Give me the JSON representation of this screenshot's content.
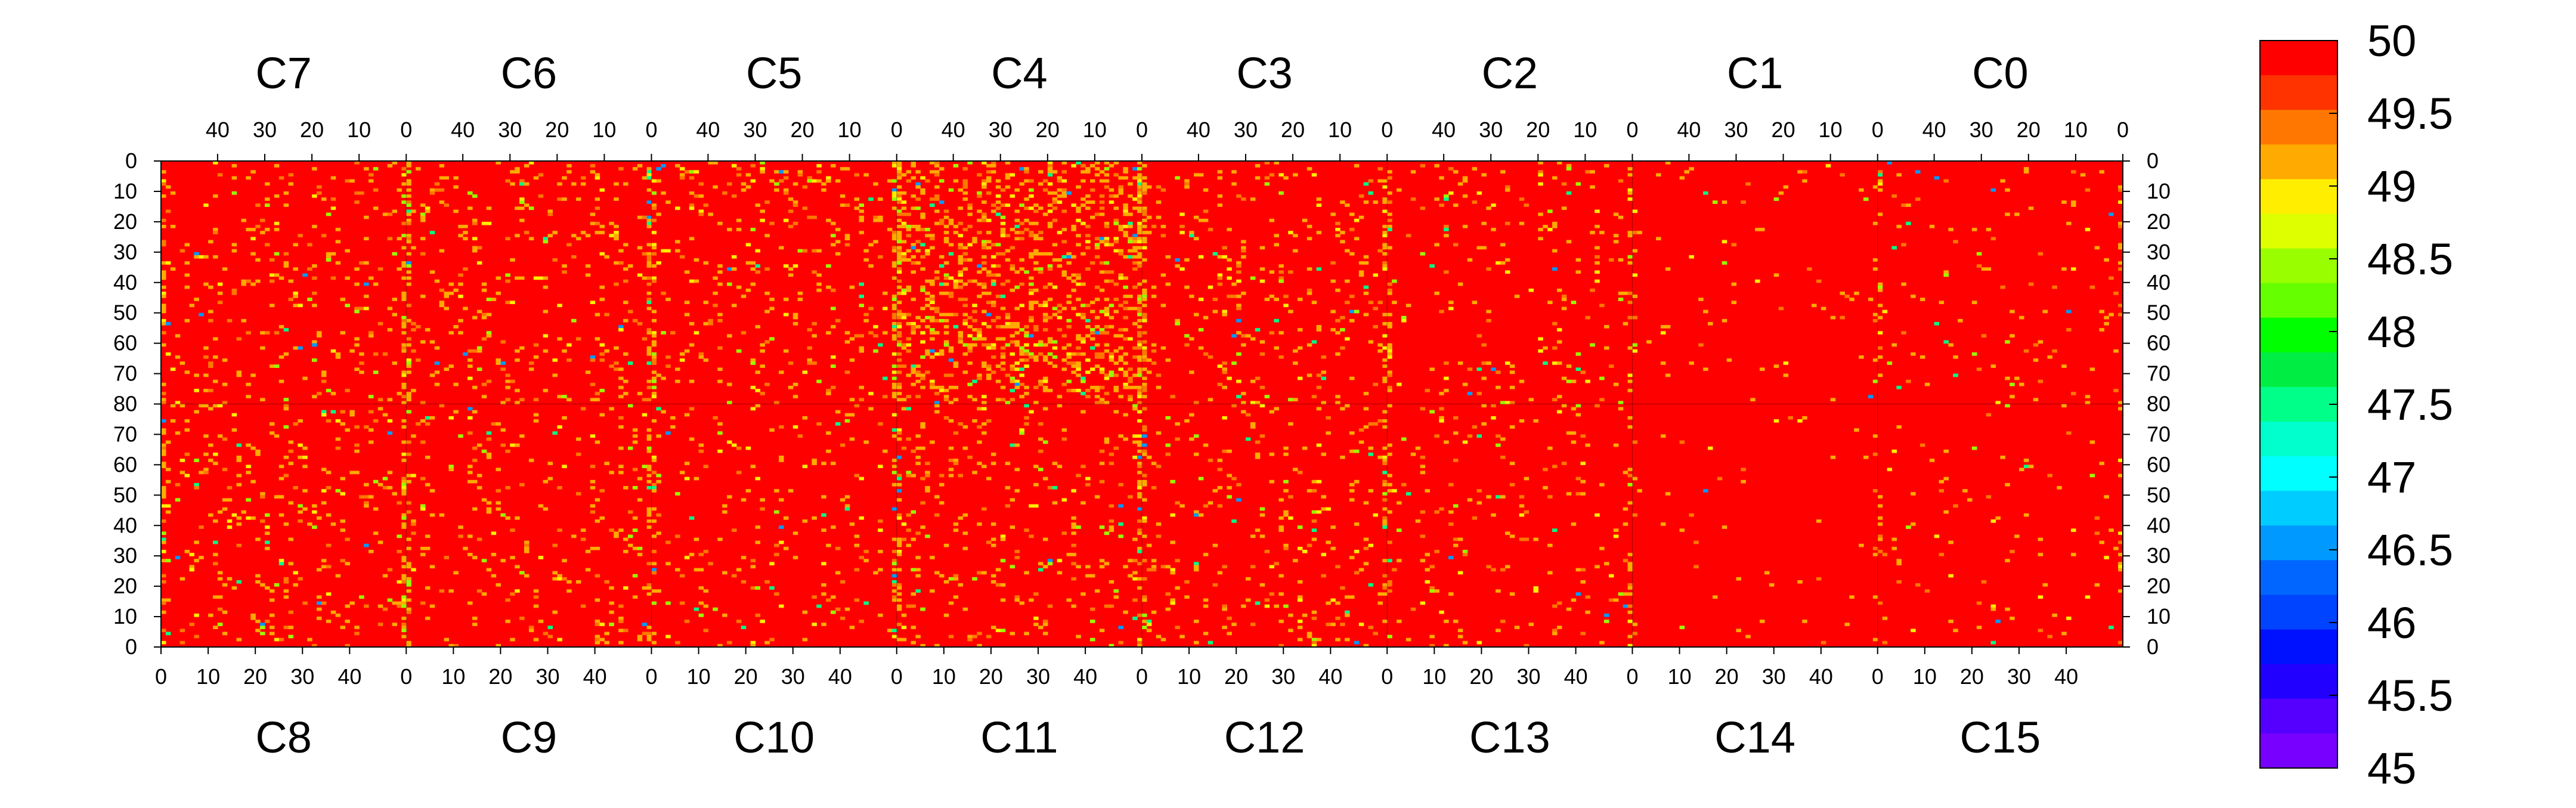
{
  "chart_data": {
    "type": "heatmap",
    "title": "",
    "value_range": [
      45,
      50
    ],
    "top_row": {
      "chips": [
        "C7",
        "C6",
        "C5",
        "C4",
        "C3",
        "C2",
        "C1",
        "C0"
      ],
      "column_axis_ticks": [
        "40",
        "30",
        "20",
        "10",
        "0"
      ],
      "row_range": [
        0,
        80
      ],
      "row_direction": "top-to-bottom",
      "column_direction": "right-to-left"
    },
    "bottom_row": {
      "chips": [
        "C8",
        "C9",
        "C10",
        "C11",
        "C12",
        "C13",
        "C14",
        "C15"
      ],
      "column_axis_ticks": [
        "0",
        "10",
        "20",
        "30",
        "40"
      ],
      "row_range": [
        0,
        80
      ],
      "row_direction": "bottom-to-top",
      "column_direction": "left-to-right"
    },
    "columns_per_chip": 52,
    "rows_per_half": 80,
    "left_axis_ticks": [
      "0",
      "10",
      "20",
      "30",
      "40",
      "50",
      "60",
      "70",
      "80",
      "70",
      "60",
      "50",
      "40",
      "30",
      "20",
      "10",
      "0"
    ],
    "right_axis_ticks": [
      "0",
      "10",
      "20",
      "30",
      "40",
      "50",
      "60",
      "70",
      "80",
      "70",
      "60",
      "50",
      "40",
      "30",
      "20",
      "10",
      "0"
    ],
    "chip_summary": [
      {
        "chip": "C7",
        "fraction_below_50": 0.06
      },
      {
        "chip": "C6",
        "fraction_below_50": 0.08
      },
      {
        "chip": "C5",
        "fraction_below_50": 0.07
      },
      {
        "chip": "C4",
        "fraction_below_50": 0.22
      },
      {
        "chip": "C3",
        "fraction_below_50": 0.07
      },
      {
        "chip": "C2",
        "fraction_below_50": 0.05
      },
      {
        "chip": "C1",
        "fraction_below_50": 0.02
      },
      {
        "chip": "C0",
        "fraction_below_50": 0.03
      },
      {
        "chip": "C8",
        "fraction_below_50": 0.07
      },
      {
        "chip": "C9",
        "fraction_below_50": 0.06
      },
      {
        "chip": "C10",
        "fraction_below_50": 0.05
      },
      {
        "chip": "C11",
        "fraction_below_50": 0.07
      },
      {
        "chip": "C12",
        "fraction_below_50": 0.06
      },
      {
        "chip": "C13",
        "fraction_below_50": 0.04
      },
      {
        "chip": "C14",
        "fraction_below_50": 0.01
      },
      {
        "chip": "C15",
        "fraction_below_50": 0.02
      }
    ],
    "colorbar": {
      "labels": [
        "50",
        "49.5",
        "49",
        "48.5",
        "48",
        "47.5",
        "47",
        "46.5",
        "46",
        "45.5",
        "45"
      ],
      "colors": [
        "#ff0000",
        "#ff3300",
        "#ff7700",
        "#ffaa00",
        "#ffee00",
        "#ddff00",
        "#99ff00",
        "#66ff00",
        "#00ff00",
        "#00ee44",
        "#00ff88",
        "#00ffcc",
        "#00ffff",
        "#00ccff",
        "#0099ff",
        "#0066ff",
        "#0044ff",
        "#0011ff",
        "#2200ff",
        "#5500ff",
        "#7700ff"
      ]
    }
  }
}
